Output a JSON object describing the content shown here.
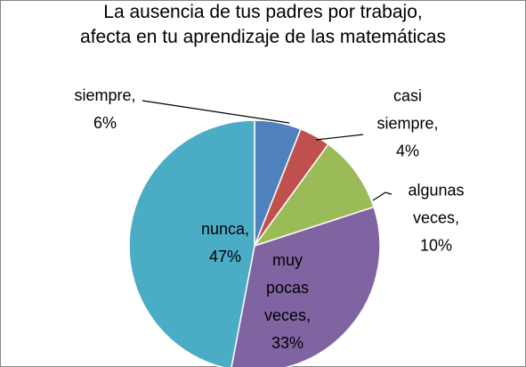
{
  "chart_data": {
    "type": "pie",
    "title": [
      "La ausencia de tus padres por trabajo,",
      "afecta en tu aprendizaje de las matemáticas"
    ],
    "values": [
      6,
      4,
      10,
      33,
      47
    ],
    "value_labels": [
      "siempre, 6%",
      "casi siempre, 4%",
      "algunas veces, 10%",
      "muy pocas veces, 33%",
      "nunca, 47%"
    ],
    "colors": [
      "#4f81bd",
      "#c0504d",
      "#9bbb59",
      "#8064a2",
      "#4bacc6"
    ]
  }
}
